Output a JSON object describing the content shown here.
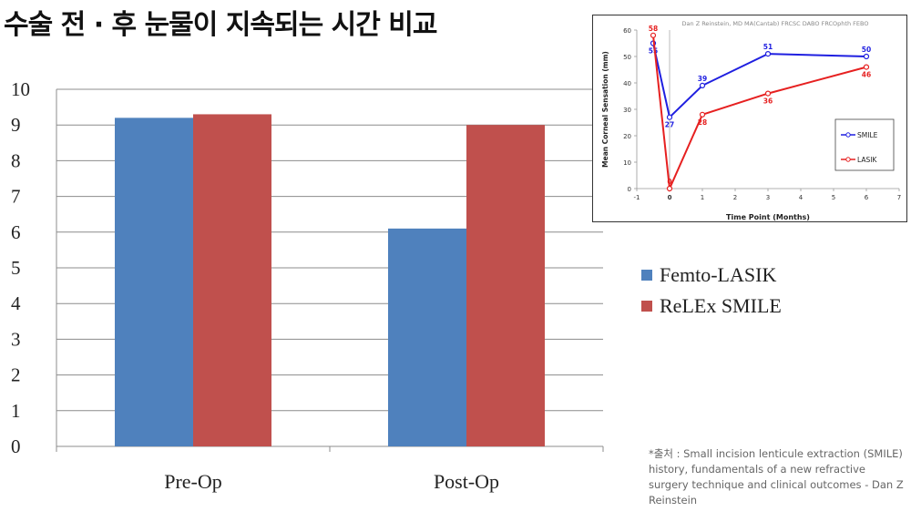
{
  "page": {
    "title": "수술 전 · 후 눈물이 지속되는 시간 비교",
    "source_note": "*출처 : Small incision lenticule extraction (SMILE) history, fundamentals of a new refractive surgery technique and clinical outcomes - Dan Z Reinstein"
  },
  "colors": {
    "femto": "#4f81bd",
    "relex": "#c0504d",
    "smile_line": "#1f1fe0",
    "lasik_line": "#e62020"
  },
  "chart_data": [
    {
      "type": "bar",
      "categories": [
        "Pre-Op",
        "Post-Op"
      ],
      "series": [
        {
          "name": "Femto-LASIK",
          "values": [
            9.2,
            6.1
          ]
        },
        {
          "name": "ReLEx SMILE",
          "values": [
            9.3,
            9.0
          ]
        }
      ],
      "ylim": [
        0,
        10
      ],
      "yticks": [
        "0",
        "1",
        "2",
        "3",
        "4",
        "5",
        "6",
        "7",
        "8",
        "9",
        "10"
      ],
      "grid": true,
      "legend": "right"
    },
    {
      "type": "line",
      "header": "Dan Z Reinstein, MD MA(Cantab) FRCSC DABO FRCOphth FEBO",
      "xlabel": "Time Point (Months)",
      "ylabel": "Mean Corneal Sensation (mm)",
      "xlim": [
        -1,
        7
      ],
      "ylim": [
        0,
        60
      ],
      "xticks": [
        "-1",
        "0",
        "1",
        "2",
        "3",
        "4",
        "5",
        "6",
        "7"
      ],
      "yticks": [
        "0",
        "10",
        "20",
        "30",
        "40",
        "50",
        "60"
      ],
      "legend": "right",
      "series": [
        {
          "name": "SMILE",
          "x": [
            -0.5,
            0,
            1,
            3,
            6
          ],
          "y": [
            55,
            27,
            39,
            51,
            50
          ],
          "labels": [
            "55",
            "27",
            "39",
            "51",
            "50"
          ]
        },
        {
          "name": "LASIK",
          "x": [
            -0.5,
            0,
            1,
            3,
            6
          ],
          "y": [
            58,
            0,
            28,
            36,
            46
          ],
          "labels": [
            "58",
            "0",
            "28",
            "36",
            "46"
          ]
        }
      ]
    }
  ]
}
